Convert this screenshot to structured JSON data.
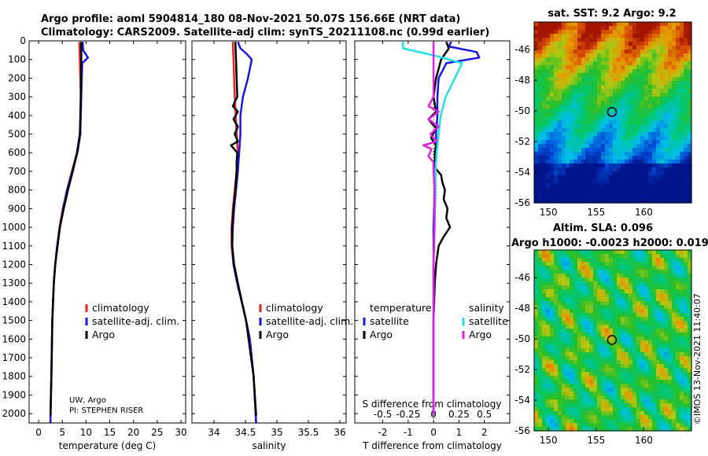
{
  "header": {
    "title_line1": "Argo profile: aoml 5904814_180 08-Nov-2021 50.07S 156.66E (NRT data)",
    "title_line2": "Climatology: CARS2009. Satellite-adj clim: synTS_20211108.nc (0.99d earlier)"
  },
  "credit": {
    "line1": "UW, Argo",
    "line2": "PI: STEPHEN RISER"
  },
  "watermark": "©IMOS 13-Nov-2021 11:40:07",
  "colors": {
    "climatology": "#e8231b",
    "satellite": "#1818e0",
    "argo": "#000000",
    "cyan": "#22e0e8",
    "magenta": "#e020e0"
  },
  "depth_axis": {
    "ticks": [
      "0",
      "100",
      "200",
      "300",
      "400",
      "500",
      "600",
      "700",
      "800",
      "900",
      "1000",
      "1100",
      "1200",
      "1300",
      "1400",
      "1500",
      "1600",
      "1700",
      "1800",
      "1900",
      "2000"
    ]
  },
  "legend": {
    "climatology": "climatology",
    "satellite": "satellite-adj. clim.",
    "argo": "Argo"
  },
  "diff_legend": {
    "temperature": "temperature",
    "salinity": "salinity",
    "satellite": "satellite",
    "argo": "Argo"
  },
  "chart_data": [
    {
      "type": "line",
      "title": "",
      "xlabel": "temperature (deg C)",
      "ylabel": "",
      "xlim": [
        -2,
        31
      ],
      "ylim": [
        2050,
        0
      ],
      "xticks": [
        "0",
        "5",
        "10",
        "15",
        "20",
        "25",
        "30"
      ],
      "series": [
        {
          "name": "climatology",
          "depth": [
            5,
            100,
            300,
            500,
            600,
            700,
            800,
            900,
            1000,
            1100,
            1200,
            1300,
            1500,
            1800,
            2050
          ],
          "values": [
            8.6,
            8.7,
            8.9,
            8.8,
            8.1,
            7.0,
            6.0,
            5.1,
            4.4,
            3.9,
            3.5,
            3.2,
            2.9,
            2.7,
            2.5
          ]
        },
        {
          "name": "satellite-adj. clim.",
          "depth": [
            5,
            50,
            90,
            120,
            300,
            500,
            600,
            700,
            800,
            900,
            1000,
            1100,
            1200,
            1300,
            1500,
            1800,
            2050
          ],
          "values": [
            9.3,
            9.4,
            10.4,
            9.2,
            9.0,
            8.8,
            8.2,
            7.1,
            6.0,
            5.2,
            4.5,
            3.9,
            3.5,
            3.2,
            2.9,
            2.7,
            2.5
          ]
        },
        {
          "name": "Argo",
          "depth": [
            5,
            100,
            300,
            500,
            600,
            700,
            800,
            900,
            1000,
            1100,
            1200,
            1300,
            1500,
            1800,
            2010
          ],
          "values": [
            9.0,
            9.0,
            8.9,
            8.7,
            8.1,
            7.2,
            6.2,
            5.3,
            4.5,
            4.0,
            3.5,
            3.2,
            2.9,
            2.7,
            2.5
          ]
        }
      ]
    },
    {
      "type": "line",
      "title": "",
      "xlabel": "salinity",
      "ylabel": "",
      "xlim": [
        33.65,
        36.1
      ],
      "ylim": [
        2050,
        0
      ],
      "xticks": [
        "34",
        "34.5",
        "35",
        "35.5",
        "36"
      ],
      "series": [
        {
          "name": "climatology",
          "depth": [
            5,
            100,
            300,
            500,
            600,
            700,
            800,
            900,
            1000,
            1100,
            1200,
            1300,
            1400,
            1500,
            1600,
            1800,
            2050
          ],
          "values": [
            34.3,
            34.31,
            34.33,
            34.36,
            34.38,
            34.36,
            34.33,
            34.3,
            34.28,
            34.28,
            34.31,
            34.37,
            34.44,
            34.51,
            34.57,
            34.63,
            34.67
          ]
        },
        {
          "name": "satellite-adj. clim.",
          "depth": [
            5,
            40,
            70,
            100,
            200,
            300,
            400,
            500,
            600,
            700,
            800,
            900,
            1000,
            1100,
            1200,
            1300,
            1400,
            1500,
            1600,
            1800,
            2050
          ],
          "values": [
            34.38,
            34.42,
            34.52,
            34.6,
            34.54,
            34.46,
            34.42,
            34.42,
            34.4,
            34.38,
            34.35,
            34.32,
            34.3,
            34.29,
            34.31,
            34.37,
            34.44,
            34.51,
            34.57,
            34.63,
            34.67
          ]
        },
        {
          "name": "Argo",
          "depth": [
            5,
            100,
            200,
            300,
            350,
            380,
            420,
            460,
            500,
            540,
            560,
            600,
            650,
            700,
            800,
            900,
            1000,
            1100,
            1200,
            1300,
            1500,
            1800,
            2010
          ],
          "values": [
            34.34,
            34.35,
            34.36,
            34.37,
            34.3,
            34.38,
            34.31,
            34.38,
            34.33,
            34.38,
            34.27,
            34.37,
            34.36,
            34.36,
            34.34,
            34.31,
            34.29,
            34.29,
            34.32,
            34.38,
            34.51,
            34.63,
            34.67
          ]
        }
      ]
    },
    {
      "type": "line",
      "title": "",
      "xlabel": "T difference from climatology",
      "ylabel": "",
      "xlim": [
        -3.1,
        3.0
      ],
      "ylim": [
        2050,
        0
      ],
      "xticks": [
        "-2",
        "-1",
        "0",
        "1",
        "2"
      ],
      "top_xlabel": "S difference from climatology",
      "top_xticks": [
        "-0.5",
        "-0.25",
        "0",
        "0.25",
        "0.5"
      ],
      "s_scale_factor": 4,
      "series": [
        {
          "name": "T satellite",
          "axis": "T",
          "depth": [
            5,
            30,
            60,
            90,
            120,
            200,
            300,
            400,
            500,
            600,
            700,
            800,
            1000,
            1200,
            1500,
            2000
          ],
          "values": [
            0.7,
            0.6,
            1.7,
            1.8,
            0.5,
            0.2,
            0.15,
            0.15,
            0.1,
            0.1,
            0.05,
            0.05,
            0.0,
            0.0,
            0.0,
            0.0
          ]
        },
        {
          "name": "T Argo",
          "axis": "T",
          "depth": [
            5,
            40,
            100,
            200,
            300,
            380,
            420,
            470,
            520,
            560,
            600,
            680,
            720,
            760,
            800,
            850,
            900,
            950,
            1000,
            1050,
            1100,
            1200,
            1300,
            1500,
            1800,
            2010
          ],
          "values": [
            0.5,
            0.6,
            0.3,
            0.1,
            0.0,
            0.1,
            -0.2,
            0.1,
            -0.1,
            0.1,
            0.05,
            0.05,
            0.3,
            0.35,
            0.45,
            0.4,
            0.55,
            0.5,
            0.65,
            0.4,
            0.2,
            0.1,
            0.05,
            0.0,
            0.0,
            0.0
          ]
        },
        {
          "name": "S satellite",
          "axis": "S",
          "depth": [
            5,
            40,
            80,
            120,
            200,
            300,
            400,
            500,
            600,
            700,
            800,
            1000,
            1200,
            1500,
            2000
          ],
          "values": [
            -0.3,
            -0.3,
            0.02,
            0.28,
            0.21,
            0.12,
            0.07,
            0.05,
            0.03,
            0.02,
            0.02,
            0.01,
            0.0,
            0.0,
            0.0
          ]
        },
        {
          "name": "S Argo",
          "axis": "S",
          "depth": [
            5,
            100,
            200,
            300,
            350,
            380,
            420,
            460,
            500,
            540,
            560,
            580,
            620,
            650,
            700,
            800,
            1000,
            1200,
            1500,
            1800,
            2010
          ],
          "values": [
            0.0,
            0.0,
            0.0,
            0.0,
            -0.05,
            0.05,
            -0.05,
            0.05,
            -0.03,
            0.03,
            -0.1,
            -0.02,
            -0.05,
            0.0,
            0.0,
            0.01,
            0.01,
            0.0,
            0.0,
            0.0,
            0.0
          ]
        }
      ]
    },
    {
      "type": "heatmap",
      "title": "sat. SST: 9.2 Argo: 9.2",
      "xlim": [
        148.5,
        165.0
      ],
      "ylim": [
        -56,
        -44.2
      ],
      "xticks": [
        "150",
        "155",
        "160"
      ],
      "yticks": [
        "-46",
        "-48",
        "-50",
        "-52",
        "-54",
        "-56"
      ],
      "argo_position": {
        "lon": 156.66,
        "lat": -50.07
      }
    },
    {
      "type": "heatmap",
      "title_line1": "Altim. SLA: 0.096",
      "title_line2": "Argo h1000: -0.0023 h2000: 0.019",
      "xlim": [
        148.5,
        165.0
      ],
      "ylim": [
        -56,
        -44.2
      ],
      "xticks": [
        "150",
        "155",
        "160"
      ],
      "yticks": [
        "-46",
        "-48",
        "-50",
        "-52",
        "-54",
        "-56"
      ],
      "argo_position": {
        "lon": 156.66,
        "lat": -50.07
      }
    }
  ]
}
